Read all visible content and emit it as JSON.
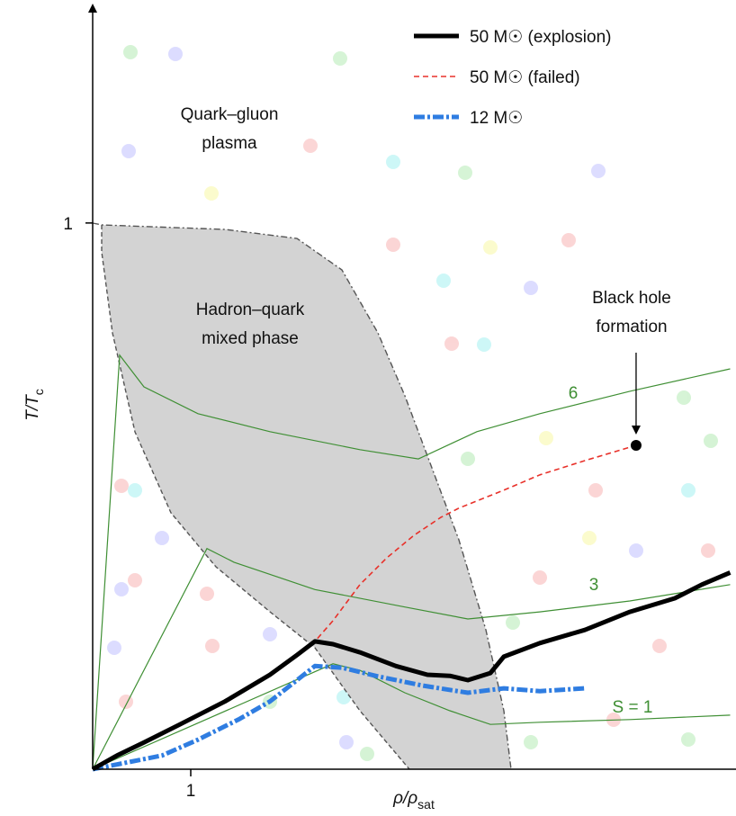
{
  "chart_data": {
    "type": "line",
    "x_label": [
      "ρ/ρ",
      "sat"
    ],
    "y_label": [
      "T/T",
      "c"
    ],
    "xlim": [
      0,
      6.5
    ],
    "ylim": [
      0,
      1.4
    ],
    "xticks": [
      1
    ],
    "yticks": [
      1
    ],
    "legend": "upper right",
    "series": [
      {
        "name": "50 M☉ (explosion)",
        "color": "#000000",
        "style": "solid",
        "x": [
          0,
          0.248,
          0.523,
          0.89,
          1.349,
          1.807,
          2.083,
          2.266,
          2.45,
          2.725,
          3.092,
          3.413,
          3.642,
          3.826,
          4.055,
          4.193,
          4.56,
          5.018,
          5.477,
          5.936,
          6.211,
          6.5
        ],
        "values": [
          0,
          0.025,
          0.049,
          0.082,
          0.124,
          0.173,
          0.209,
          0.234,
          0.229,
          0.214,
          0.189,
          0.173,
          0.171,
          0.163,
          0.176,
          0.206,
          0.231,
          0.255,
          0.288,
          0.313,
          0.338,
          0.36
        ]
      },
      {
        "name": "50 M☉ (failed)",
        "color": "#e8312a",
        "style": "dashed",
        "x": [
          0,
          0.248,
          0.523,
          0.89,
          1.349,
          1.807,
          2.083,
          2.266,
          2.45,
          2.725,
          3.0,
          3.275,
          3.55,
          3.734,
          4.193,
          4.56,
          5.018,
          5.541
        ],
        "values": [
          0,
          0.025,
          0.049,
          0.082,
          0.124,
          0.173,
          0.209,
          0.234,
          0.272,
          0.338,
          0.387,
          0.428,
          0.461,
          0.478,
          0.511,
          0.539,
          0.565,
          0.593
        ]
      },
      {
        "name": "12 M☉",
        "color": "#2f7de1",
        "style": "dashdot",
        "x": [
          0,
          0.339,
          0.706,
          1.073,
          1.486,
          1.807,
          2.266,
          2.541,
          2.908,
          3.367,
          3.826,
          4.193,
          4.56,
          5.018
        ],
        "values": [
          0,
          0.012,
          0.025,
          0.054,
          0.091,
          0.124,
          0.189,
          0.186,
          0.17,
          0.153,
          0.14,
          0.148,
          0.143,
          0.148
        ]
      }
    ],
    "contours": [
      {
        "name": "6",
        "color": "#3f8f34",
        "x": [
          0,
          0.275,
          0.523,
          1.073,
          1.807,
          2.725,
          3.321,
          3.917,
          4.56,
          5.477,
          6.5
        ],
        "values": [
          0,
          0.758,
          0.7,
          0.651,
          0.618,
          0.585,
          0.568,
          0.618,
          0.651,
          0.692,
          0.733
        ]
      },
      {
        "name": "3",
        "color": "#3f8f34",
        "x": [
          0,
          1.165,
          1.44,
          2.266,
          3.183,
          3.826,
          4.56,
          5.477,
          6.5
        ],
        "values": [
          0,
          0.404,
          0.379,
          0.329,
          0.297,
          0.275,
          0.288,
          0.308,
          0.338
        ]
      },
      {
        "name": "S = 1",
        "color": "#3f8f34",
        "x": [
          0,
          2.45,
          2.725,
          3.183,
          3.642,
          4.055,
          4.56,
          5.477,
          6.5
        ],
        "values": [
          0,
          0.193,
          0.181,
          0.14,
          0.107,
          0.082,
          0.086,
          0.091,
          0.099
        ]
      }
    ],
    "annotations": [
      [
        "Quark–gluon",
        "plasma"
      ],
      [
        "Hadron–quark",
        "mixed phase"
      ],
      [
        "Black hole",
        "formation"
      ]
    ]
  }
}
